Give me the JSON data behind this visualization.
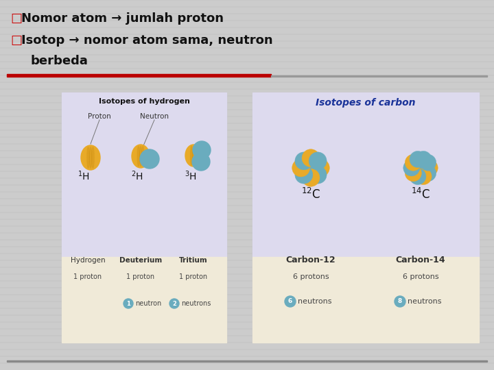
{
  "slide_bg": "#cccccc",
  "stripe_color": "#bbbbbb",
  "bullet_color": "#cc0000",
  "bullet_symbol": "□",
  "text_color": "#111111",
  "title_line1": "Nomor atom → jumlah proton",
  "title_line2": "Isotop → nomor atom sama, neutron",
  "title_line3": "berbeda",
  "font_size_title": 13,
  "divider_dark": "#bb0000",
  "divider_light": "#999999",
  "h_panel_bg": "#dddaee",
  "h_panel_label_bg": "#f0ead8",
  "c_panel_bg": "#dddaee",
  "c_panel_label_bg": "#f0ead8",
  "panel_border": "#bbbbbb",
  "proton_color": "#e8aa28",
  "neutron_color": "#6aacbe",
  "text_dark": "#222222",
  "carbon_title_color": "#1a3399",
  "white": "#ffffff"
}
